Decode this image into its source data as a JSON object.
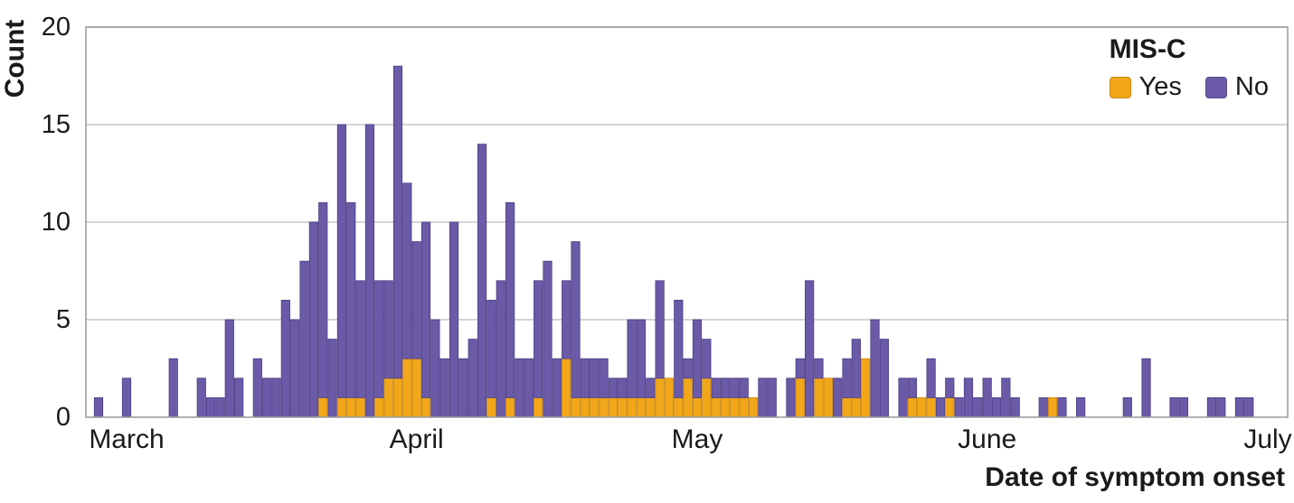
{
  "colors": {
    "yes": "#F2A71B",
    "no": "#6B5AA7",
    "yes_stroke": "#C8860E",
    "no_stroke": "#4C3F85",
    "grid": "#C6C6C6",
    "frame": "#9E9E9E",
    "text": "#1A1A1A"
  },
  "chart_data": {
    "type": "bar",
    "stacked": true,
    "title": "",
    "xlabel": "Date of symptom onset",
    "ylabel": "Count",
    "ylim": [
      0,
      20
    ],
    "yticks": [
      0,
      5,
      10,
      15,
      20
    ],
    "x_ticks": [
      {
        "label": "March",
        "date": "Mar 1"
      },
      {
        "label": "April",
        "date": "Apr 1"
      },
      {
        "label": "May",
        "date": "May 1"
      },
      {
        "label": "June",
        "date": "Jun 1"
      },
      {
        "label": "July",
        "date": "Jul 1"
      }
    ],
    "legend": {
      "title": "MIS-C",
      "entries": [
        {
          "label": "Yes",
          "key": "yes",
          "color": "#F2A71B"
        },
        {
          "label": "No",
          "key": "no",
          "color": "#6B5AA7"
        }
      ]
    },
    "series_keys": [
      "yes",
      "no"
    ],
    "points": [
      {
        "d": "Feb 27",
        "yes": 0,
        "no": 1
      },
      {
        "d": "Mar 1",
        "yes": 0,
        "no": 2
      },
      {
        "d": "Mar 6",
        "yes": 0,
        "no": 3
      },
      {
        "d": "Mar 9",
        "yes": 0,
        "no": 2
      },
      {
        "d": "Mar 10",
        "yes": 0,
        "no": 1
      },
      {
        "d": "Mar 11",
        "yes": 0,
        "no": 1
      },
      {
        "d": "Mar 12",
        "yes": 0,
        "no": 5
      },
      {
        "d": "Mar 13",
        "yes": 0,
        "no": 2
      },
      {
        "d": "Mar 15",
        "yes": 0,
        "no": 3
      },
      {
        "d": "Mar 16",
        "yes": 0,
        "no": 2
      },
      {
        "d": "Mar 17",
        "yes": 0,
        "no": 2
      },
      {
        "d": "Mar 18",
        "yes": 0,
        "no": 6
      },
      {
        "d": "Mar 19",
        "yes": 0,
        "no": 5
      },
      {
        "d": "Mar 20",
        "yes": 0,
        "no": 8
      },
      {
        "d": "Mar 21",
        "yes": 0,
        "no": 10
      },
      {
        "d": "Mar 22",
        "yes": 1,
        "no": 10
      },
      {
        "d": "Mar 23",
        "yes": 0,
        "no": 4
      },
      {
        "d": "Mar 24",
        "yes": 1,
        "no": 14
      },
      {
        "d": "Mar 25",
        "yes": 1,
        "no": 10
      },
      {
        "d": "Mar 26",
        "yes": 1,
        "no": 6
      },
      {
        "d": "Mar 27",
        "yes": 0,
        "no": 15
      },
      {
        "d": "Mar 28",
        "yes": 1,
        "no": 6
      },
      {
        "d": "Mar 29",
        "yes": 2,
        "no": 5
      },
      {
        "d": "Mar 30",
        "yes": 2,
        "no": 16
      },
      {
        "d": "Mar 31",
        "yes": 3,
        "no": 9
      },
      {
        "d": "Apr 1",
        "yes": 3,
        "no": 6
      },
      {
        "d": "Apr 2",
        "yes": 1,
        "no": 9
      },
      {
        "d": "Apr 3",
        "yes": 0,
        "no": 5
      },
      {
        "d": "Apr 4",
        "yes": 0,
        "no": 3
      },
      {
        "d": "Apr 5",
        "yes": 0,
        "no": 10
      },
      {
        "d": "Apr 6",
        "yes": 0,
        "no": 3
      },
      {
        "d": "Apr 7",
        "yes": 0,
        "no": 4
      },
      {
        "d": "Apr 8",
        "yes": 0,
        "no": 14
      },
      {
        "d": "Apr 9",
        "yes": 1,
        "no": 5
      },
      {
        "d": "Apr 10",
        "yes": 0,
        "no": 7
      },
      {
        "d": "Apr 11",
        "yes": 1,
        "no": 10
      },
      {
        "d": "Apr 12",
        "yes": 0,
        "no": 3
      },
      {
        "d": "Apr 13",
        "yes": 0,
        "no": 3
      },
      {
        "d": "Apr 14",
        "yes": 1,
        "no": 6
      },
      {
        "d": "Apr 15",
        "yes": 0,
        "no": 8
      },
      {
        "d": "Apr 16",
        "yes": 0,
        "no": 3
      },
      {
        "d": "Apr 17",
        "yes": 3,
        "no": 4
      },
      {
        "d": "Apr 18",
        "yes": 1,
        "no": 8
      },
      {
        "d": "Apr 19",
        "yes": 1,
        "no": 2
      },
      {
        "d": "Apr 20",
        "yes": 1,
        "no": 2
      },
      {
        "d": "Apr 21",
        "yes": 1,
        "no": 2
      },
      {
        "d": "Apr 22",
        "yes": 1,
        "no": 1
      },
      {
        "d": "Apr 23",
        "yes": 1,
        "no": 1
      },
      {
        "d": "Apr 24",
        "yes": 1,
        "no": 4
      },
      {
        "d": "Apr 25",
        "yes": 1,
        "no": 4
      },
      {
        "d": "Apr 26",
        "yes": 1,
        "no": 1
      },
      {
        "d": "Apr 27",
        "yes": 2,
        "no": 5
      },
      {
        "d": "Apr 28",
        "yes": 2,
        "no": 0
      },
      {
        "d": "Apr 29",
        "yes": 1,
        "no": 5
      },
      {
        "d": "Apr 30",
        "yes": 2,
        "no": 1
      },
      {
        "d": "May 1",
        "yes": 1,
        "no": 4
      },
      {
        "d": "May 2",
        "yes": 2,
        "no": 2
      },
      {
        "d": "May 3",
        "yes": 1,
        "no": 1
      },
      {
        "d": "May 4",
        "yes": 1,
        "no": 1
      },
      {
        "d": "May 5",
        "yes": 1,
        "no": 1
      },
      {
        "d": "May 6",
        "yes": 1,
        "no": 1
      },
      {
        "d": "May 7",
        "yes": 1,
        "no": 0
      },
      {
        "d": "May 8",
        "yes": 0,
        "no": 2
      },
      {
        "d": "May 9",
        "yes": 0,
        "no": 2
      },
      {
        "d": "May 11",
        "yes": 0,
        "no": 2
      },
      {
        "d": "May 12",
        "yes": 2,
        "no": 1
      },
      {
        "d": "May 13",
        "yes": 0,
        "no": 7
      },
      {
        "d": "May 14",
        "yes": 2,
        "no": 1
      },
      {
        "d": "May 15",
        "yes": 2,
        "no": 0
      },
      {
        "d": "May 16",
        "yes": 0,
        "no": 2
      },
      {
        "d": "May 17",
        "yes": 1,
        "no": 2
      },
      {
        "d": "May 18",
        "yes": 1,
        "no": 3
      },
      {
        "d": "May 19",
        "yes": 3,
        "no": 0
      },
      {
        "d": "May 20",
        "yes": 0,
        "no": 5
      },
      {
        "d": "May 21",
        "yes": 0,
        "no": 4
      },
      {
        "d": "May 23",
        "yes": 0,
        "no": 2
      },
      {
        "d": "May 24",
        "yes": 1,
        "no": 1
      },
      {
        "d": "May 25",
        "yes": 1,
        "no": 0
      },
      {
        "d": "May 26",
        "yes": 1,
        "no": 2
      },
      {
        "d": "May 27",
        "yes": 0,
        "no": 1
      },
      {
        "d": "May 28",
        "yes": 1,
        "no": 1
      },
      {
        "d": "May 29",
        "yes": 0,
        "no": 1
      },
      {
        "d": "May 30",
        "yes": 0,
        "no": 2
      },
      {
        "d": "May 31",
        "yes": 0,
        "no": 1
      },
      {
        "d": "Jun 1",
        "yes": 0,
        "no": 2
      },
      {
        "d": "Jun 2",
        "yes": 0,
        "no": 1
      },
      {
        "d": "Jun 3",
        "yes": 0,
        "no": 2
      },
      {
        "d": "Jun 4",
        "yes": 0,
        "no": 1
      },
      {
        "d": "Jun 7",
        "yes": 0,
        "no": 1
      },
      {
        "d": "Jun 8",
        "yes": 1,
        "no": 0
      },
      {
        "d": "Jun 9",
        "yes": 0,
        "no": 1
      },
      {
        "d": "Jun 11",
        "yes": 0,
        "no": 1
      },
      {
        "d": "Jun 16",
        "yes": 0,
        "no": 1
      },
      {
        "d": "Jun 18",
        "yes": 0,
        "no": 3
      },
      {
        "d": "Jun 21",
        "yes": 0,
        "no": 1
      },
      {
        "d": "Jun 22",
        "yes": 0,
        "no": 1
      },
      {
        "d": "Jun 25",
        "yes": 0,
        "no": 1
      },
      {
        "d": "Jun 26",
        "yes": 0,
        "no": 1
      },
      {
        "d": "Jun 28",
        "yes": 0,
        "no": 1
      },
      {
        "d": "Jun 29",
        "yes": 0,
        "no": 1
      }
    ]
  }
}
